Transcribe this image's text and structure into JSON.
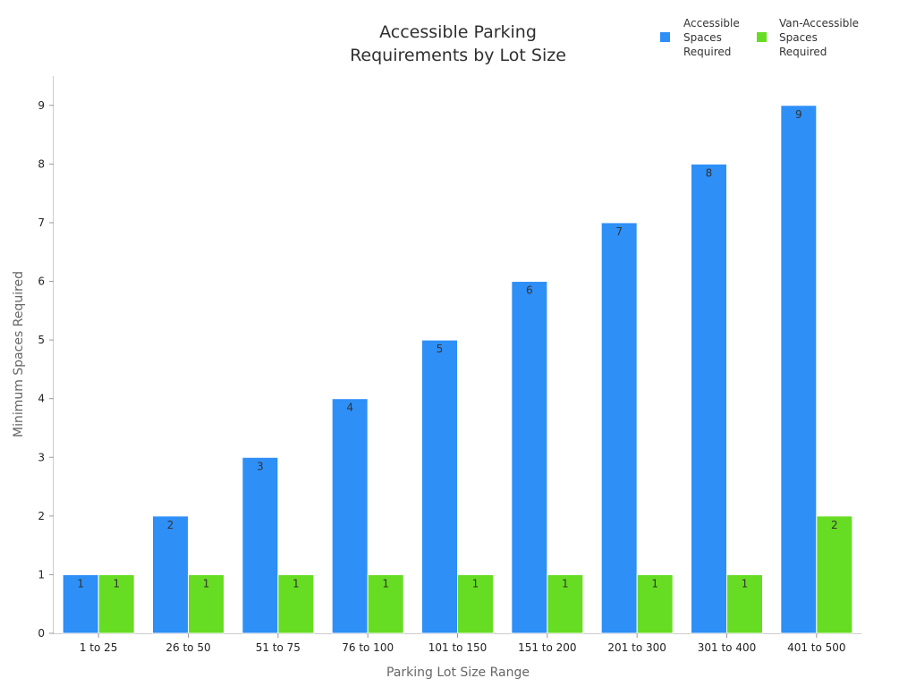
{
  "chart_data": {
    "type": "bar",
    "title_lines": [
      "Accessible Parking",
      "Requirements by Lot Size"
    ],
    "xlabel": "Parking Lot Size Range",
    "ylabel": "Minimum Spaces Required",
    "categories": [
      "1 to 25",
      "26 to 50",
      "51 to 75",
      "76 to 100",
      "101 to 150",
      "151 to 200",
      "201 to 300",
      "301 to 400",
      "401 to 500"
    ],
    "series": [
      {
        "name": "Accessible Spaces Required",
        "name_lines": [
          "Accessible",
          "Spaces",
          "Required"
        ],
        "color": "#2e8ff7",
        "values": [
          1,
          2,
          3,
          4,
          5,
          6,
          7,
          8,
          9
        ]
      },
      {
        "name": "Van-Accessible Spaces Required",
        "name_lines": [
          "Van-Accessible",
          "Spaces",
          "Required"
        ],
        "color": "#66dd22",
        "values": [
          1,
          1,
          1,
          1,
          1,
          1,
          1,
          1,
          2
        ]
      }
    ],
    "yticks": [
      0,
      1,
      2,
      3,
      4,
      5,
      6,
      7,
      8,
      9
    ],
    "ylim": [
      0,
      9.5
    ],
    "legend_position": "top-right",
    "grid": false
  }
}
